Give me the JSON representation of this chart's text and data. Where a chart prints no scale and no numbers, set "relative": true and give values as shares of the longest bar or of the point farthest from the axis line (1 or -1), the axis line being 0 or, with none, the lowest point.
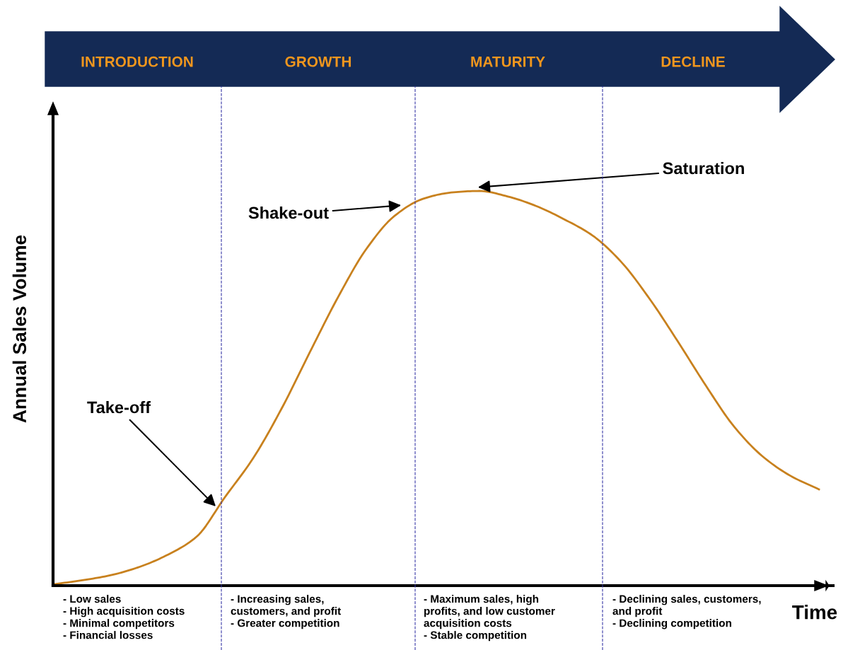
{
  "chart_data": {
    "type": "line",
    "relative": true,
    "xlabel": "Time",
    "ylabel": "Annual Sales Volume",
    "categories": [
      null,
      null,
      null,
      null,
      null,
      null,
      null,
      null,
      null,
      null,
      null,
      null,
      null,
      null,
      null,
      null,
      null,
      null,
      null,
      null,
      null,
      null,
      null,
      null,
      null,
      null,
      null,
      null
    ],
    "series": [
      {
        "color": "#c8811e",
        "values": [
          0.004,
          0.014,
          0.027,
          0.048,
          0.079,
          0.124,
          0.224,
          0.323,
          0.448,
          0.591,
          0.731,
          0.853,
          0.937,
          0.98,
          0.996,
          1.0,
          0.986,
          0.962,
          0.928,
          0.887,
          0.821,
          0.728,
          0.62,
          0.507,
          0.403,
          0.328,
          0.278,
          0.244
        ]
      }
    ],
    "annotations": [
      "INTRODUCTION",
      "GROWTH",
      "MATURITY",
      "DECLINE",
      "Take-off",
      "Shake-out",
      "Saturation",
      "- Low sales\n- High acquisition costs\n- Minimal competitors\n- Financial losses",
      "- Increasing sales,\ncustomers, and profit\n- Greater competition",
      "- Maximum sales, high\nprofits, and low customer\nacquisition costs\n- Stable competition",
      "- Declining sales, customers,\nand profit\n- Declining competition"
    ],
    "marker": "none",
    "line_style": "solid"
  }
}
